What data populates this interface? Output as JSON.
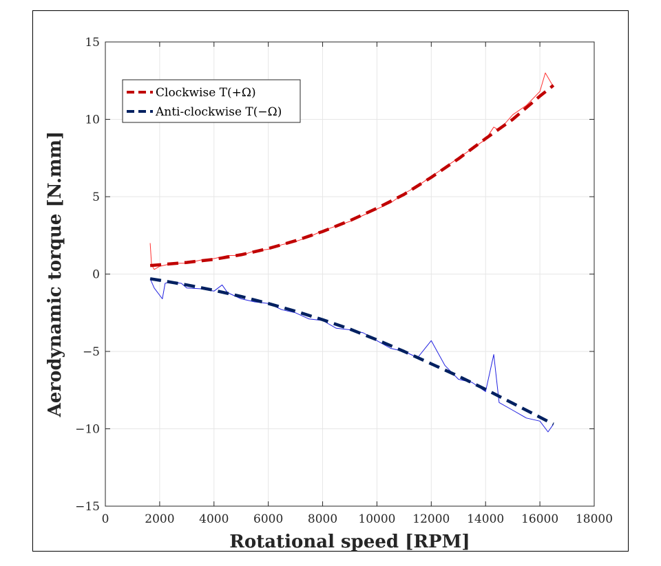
{
  "chart_data": {
    "type": "line",
    "xlabel": "Rotational speed [RPM]",
    "ylabel": "Aerodynamic torque [N.mm]",
    "xlim": [
      0,
      18000
    ],
    "ylim": [
      -15,
      15
    ],
    "xticks": [
      0,
      2000,
      4000,
      6000,
      8000,
      10000,
      12000,
      14000,
      16000,
      18000
    ],
    "yticks": [
      -15,
      -10,
      -5,
      0,
      5,
      10,
      15
    ],
    "xtick_labels": [
      "0",
      "2000",
      "4000",
      "6000",
      "8000",
      "10000",
      "12000",
      "14000",
      "16000",
      "18000"
    ],
    "ytick_labels": [
      "−15",
      "−10",
      "−5",
      "0",
      "5",
      "10",
      "15"
    ],
    "grid": true,
    "legend_position": "top-left",
    "series": [
      {
        "name": "Clockwise T(+Ω)",
        "style": "dashed",
        "color": "#c00000",
        "x": [
          1650,
          2000,
          3000,
          4000,
          5000,
          6000,
          7000,
          8000,
          9000,
          10000,
          11000,
          12000,
          13000,
          14000,
          15000,
          16000,
          16500
        ],
        "y": [
          0.55,
          0.6,
          0.75,
          0.95,
          1.25,
          1.65,
          2.15,
          2.75,
          3.45,
          4.25,
          5.15,
          6.25,
          7.45,
          8.75,
          10.0,
          11.5,
          12.2
        ]
      },
      {
        "name": "Anti-clockwise T(−Ω)",
        "style": "dashed",
        "color": "#002060",
        "x": [
          1650,
          2000,
          3000,
          4000,
          5000,
          6000,
          7000,
          8000,
          9000,
          10000,
          11000,
          12000,
          13000,
          14000,
          15000,
          16000,
          16500
        ],
        "y": [
          -0.3,
          -0.4,
          -0.7,
          -1.05,
          -1.45,
          -1.9,
          -2.4,
          -2.95,
          -3.55,
          -4.25,
          -5.0,
          -5.8,
          -6.6,
          -7.45,
          -8.35,
          -9.25,
          -9.7
        ]
      },
      {
        "style": "solid-noisy",
        "color": "#ff3030",
        "x": [
          1650,
          1700,
          1800,
          2000,
          2500,
          3000,
          3500,
          4000,
          4500,
          5000,
          5500,
          6000,
          6500,
          7000,
          7500,
          8000,
          8500,
          9000,
          9500,
          10000,
          10500,
          11000,
          11500,
          12000,
          12500,
          13000,
          13500,
          14000,
          14300,
          14500,
          15000,
          15500,
          16000,
          16200,
          16500
        ],
        "y": [
          2.0,
          0.6,
          0.3,
          0.5,
          0.7,
          0.7,
          0.9,
          1.0,
          1.2,
          1.2,
          1.5,
          1.6,
          1.9,
          2.1,
          2.4,
          2.8,
          3.1,
          3.4,
          3.8,
          4.2,
          4.6,
          5.2,
          5.7,
          6.3,
          6.9,
          7.5,
          8.1,
          8.7,
          9.5,
          9.3,
          10.3,
          10.9,
          11.8,
          13.0,
          12.1
        ]
      },
      {
        "style": "solid-noisy",
        "color": "#2020e0",
        "x": [
          1650,
          1800,
          2100,
          2200,
          2400,
          2800,
          3000,
          3500,
          4000,
          4300,
          4500,
          5000,
          5500,
          6000,
          6500,
          7000,
          7500,
          8000,
          8500,
          9000,
          9500,
          10000,
          10500,
          11000,
          11500,
          12000,
          12500,
          13000,
          13500,
          14000,
          14300,
          14500,
          15000,
          15500,
          16000,
          16300,
          16500
        ],
        "y": [
          -0.3,
          -0.9,
          -1.6,
          -0.6,
          -0.5,
          -0.6,
          -0.9,
          -0.95,
          -1.1,
          -0.7,
          -1.2,
          -1.6,
          -1.8,
          -1.9,
          -2.3,
          -2.5,
          -2.9,
          -3.0,
          -3.5,
          -3.6,
          -3.8,
          -4.3,
          -4.8,
          -5.0,
          -5.4,
          -4.3,
          -5.9,
          -6.8,
          -7.0,
          -7.6,
          -5.2,
          -8.3,
          -8.8,
          -9.3,
          -9.5,
          -10.2,
          -9.7
        ]
      }
    ]
  }
}
